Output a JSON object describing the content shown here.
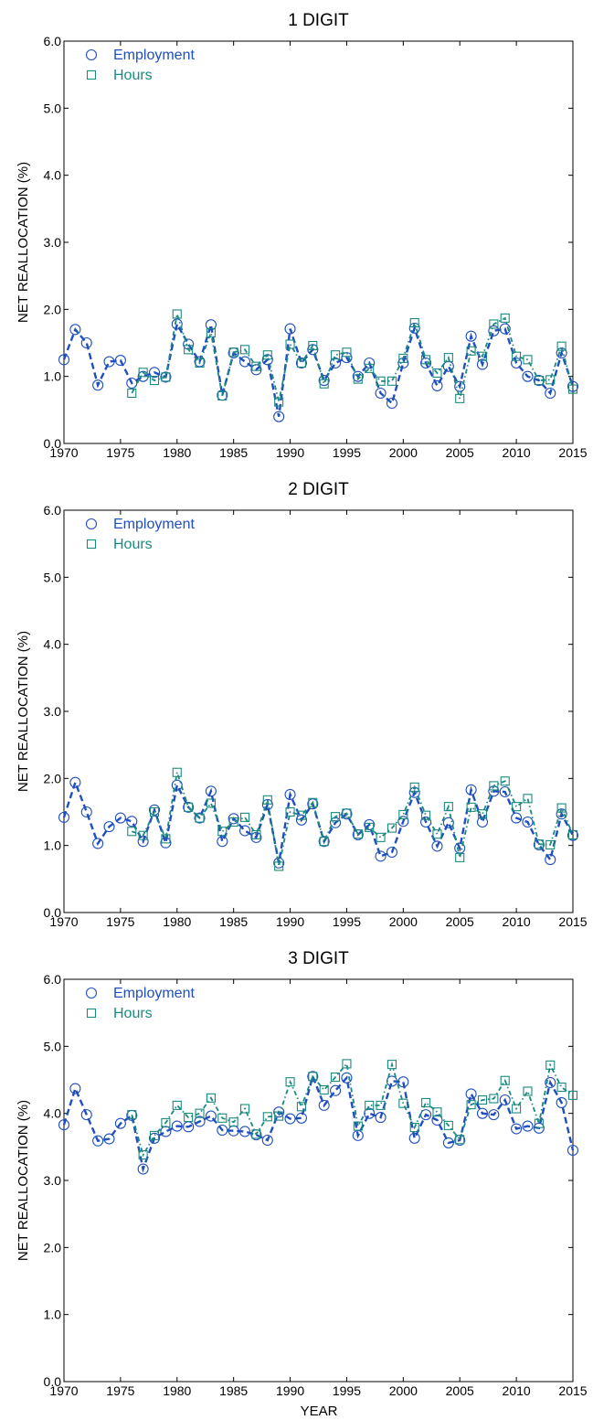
{
  "figure": {
    "xlabel": "YEAR"
  },
  "colors": {
    "employment": "#1f4fbf",
    "hours": "#1a8a7e",
    "axis": "#000000"
  },
  "chart_data": [
    {
      "type": "line",
      "title": "1 DIGIT",
      "ylabel": "NET REALLOCATION (%)",
      "xlim": [
        1970,
        2015
      ],
      "ylim": [
        0,
        6
      ],
      "xticks": [
        "1970",
        "1975",
        "1980",
        "1985",
        "1990",
        "1995",
        "2000",
        "2005",
        "2010",
        "2015"
      ],
      "yticks": [
        "0.0",
        "1.0",
        "2.0",
        "3.0",
        "4.0",
        "5.0",
        "6.0"
      ],
      "legend": "top-left",
      "grid": false,
      "x": [
        1970,
        1971,
        1972,
        1973,
        1974,
        1975,
        1976,
        1977,
        1978,
        1979,
        1980,
        1981,
        1982,
        1983,
        1984,
        1985,
        1986,
        1987,
        1988,
        1989,
        1990,
        1991,
        1992,
        1993,
        1994,
        1995,
        1996,
        1997,
        1998,
        1999,
        2000,
        2001,
        2002,
        2003,
        2004,
        2005,
        2006,
        2007,
        2008,
        2009,
        2010,
        2011,
        2012,
        2013,
        2014,
        2015
      ],
      "series": [
        {
          "name": "Employment",
          "marker": "circle",
          "values": [
            1.25,
            1.7,
            1.5,
            0.87,
            1.22,
            1.24,
            0.9,
            1.0,
            1.06,
            0.99,
            1.78,
            1.48,
            1.22,
            1.77,
            0.72,
            1.35,
            1.22,
            1.1,
            1.25,
            0.4,
            1.71,
            1.2,
            1.4,
            0.94,
            1.2,
            1.28,
            1.0,
            1.2,
            0.75,
            0.6,
            1.2,
            1.72,
            1.2,
            0.86,
            1.15,
            0.85,
            1.6,
            1.18,
            1.68,
            1.71,
            1.2,
            1.0,
            0.94,
            0.75,
            1.35,
            0.85
          ]
        },
        {
          "name": "Hours",
          "marker": "square",
          "values": [
            null,
            null,
            null,
            null,
            null,
            null,
            0.75,
            1.06,
            0.94,
            0.99,
            1.93,
            1.4,
            1.2,
            1.65,
            0.71,
            1.36,
            1.4,
            1.15,
            1.32,
            0.62,
            1.48,
            1.2,
            1.46,
            0.89,
            1.32,
            1.36,
            0.96,
            1.12,
            0.93,
            0.93,
            1.27,
            1.8,
            1.25,
            1.05,
            1.28,
            0.67,
            1.38,
            1.3,
            1.78,
            1.87,
            1.3,
            1.25,
            0.94,
            0.95,
            1.45,
            0.81
          ]
        }
      ]
    },
    {
      "type": "line",
      "title": "2 DIGIT",
      "ylabel": "NET REALLOCATION (%)",
      "xlim": [
        1970,
        2015
      ],
      "ylim": [
        0,
        6
      ],
      "xticks": [
        "1970",
        "1975",
        "1980",
        "1985",
        "1990",
        "1995",
        "2000",
        "2005",
        "2010",
        "2015"
      ],
      "yticks": [
        "0.0",
        "1.0",
        "2.0",
        "3.0",
        "4.0",
        "5.0",
        "6.0"
      ],
      "legend": "top-left",
      "grid": false,
      "x": [
        1970,
        1971,
        1972,
        1973,
        1974,
        1975,
        1976,
        1977,
        1978,
        1979,
        1980,
        1981,
        1982,
        1983,
        1984,
        1985,
        1986,
        1987,
        1988,
        1989,
        1990,
        1991,
        1992,
        1993,
        1994,
        1995,
        1996,
        1997,
        1998,
        1999,
        2000,
        2001,
        2002,
        2003,
        2004,
        2005,
        2006,
        2007,
        2008,
        2009,
        2010,
        2011,
        2012,
        2013,
        2014,
        2015
      ],
      "series": [
        {
          "name": "Employment",
          "marker": "circle",
          "values": [
            1.42,
            1.94,
            1.5,
            1.03,
            1.28,
            1.41,
            1.36,
            1.06,
            1.53,
            1.04,
            1.9,
            1.57,
            1.41,
            1.81,
            1.06,
            1.4,
            1.22,
            1.12,
            1.61,
            0.74,
            1.76,
            1.38,
            1.62,
            1.06,
            1.34,
            1.47,
            1.16,
            1.31,
            0.84,
            0.9,
            1.36,
            1.79,
            1.35,
            0.99,
            1.34,
            0.96,
            1.83,
            1.35,
            1.81,
            1.8,
            1.41,
            1.35,
            1.01,
            0.79,
            1.47,
            1.15
          ]
        },
        {
          "name": "Hours",
          "marker": "square",
          "values": [
            null,
            null,
            null,
            null,
            null,
            null,
            1.21,
            1.15,
            1.5,
            1.1,
            2.09,
            1.57,
            1.41,
            1.63,
            1.21,
            1.35,
            1.42,
            1.16,
            1.68,
            0.69,
            1.5,
            1.45,
            1.64,
            1.06,
            1.43,
            1.48,
            1.17,
            1.27,
            1.12,
            1.26,
            1.46,
            1.87,
            1.45,
            1.17,
            1.58,
            0.82,
            1.57,
            1.47,
            1.89,
            1.96,
            1.58,
            1.7,
            1.02,
            1.01,
            1.56,
            1.16
          ]
        }
      ]
    },
    {
      "type": "line",
      "title": "3 DIGIT",
      "ylabel": "NET REALLOCATION (%)",
      "xlabel": "YEAR",
      "xlim": [
        1970,
        2015
      ],
      "ylim": [
        0,
        6
      ],
      "xticks": [
        "1970",
        "1975",
        "1980",
        "1985",
        "1990",
        "1995",
        "2000",
        "2005",
        "2010",
        "2015"
      ],
      "yticks": [
        "0.0",
        "1.0",
        "2.0",
        "3.0",
        "4.0",
        "5.0",
        "6.0"
      ],
      "legend": "top-left",
      "grid": false,
      "x": [
        1970,
        1971,
        1972,
        1973,
        1974,
        1975,
        1976,
        1977,
        1978,
        1979,
        1980,
        1981,
        1982,
        1983,
        1984,
        1985,
        1986,
        1987,
        1988,
        1989,
        1990,
        1991,
        1992,
        1993,
        1994,
        1995,
        1996,
        1997,
        1998,
        1999,
        2000,
        2001,
        2002,
        2003,
        2004,
        2005,
        2006,
        2007,
        2008,
        2009,
        2010,
        2011,
        2012,
        2013,
        2014,
        2015
      ],
      "series": [
        {
          "name": "Employment",
          "marker": "circle",
          "values": [
            3.83,
            4.37,
            3.98,
            3.59,
            3.62,
            3.85,
            3.97,
            3.17,
            3.63,
            3.73,
            3.81,
            3.8,
            3.88,
            3.96,
            3.75,
            3.74,
            3.73,
            3.68,
            3.6,
            4.02,
            3.92,
            3.93,
            4.55,
            4.12,
            4.34,
            4.53,
            3.67,
            4.0,
            3.94,
            4.48,
            4.47,
            3.63,
            3.98,
            3.9,
            3.56,
            3.6,
            4.29,
            4.0,
            3.98,
            4.2,
            3.77,
            3.81,
            3.78,
            4.46,
            4.16,
            3.45
          ]
        },
        {
          "name": "Hours",
          "marker": "square",
          "values": [
            null,
            null,
            null,
            null,
            null,
            null,
            3.98,
            3.38,
            3.67,
            3.86,
            4.12,
            3.94,
            4.0,
            4.23,
            3.93,
            3.87,
            4.07,
            3.69,
            3.95,
            3.96,
            4.47,
            4.1,
            4.55,
            4.35,
            4.54,
            4.74,
            3.81,
            4.12,
            4.12,
            4.73,
            4.15,
            3.79,
            4.16,
            4.02,
            3.82,
            3.61,
            4.13,
            4.2,
            4.22,
            4.49,
            4.07,
            4.33,
            3.85,
            4.72,
            4.39,
            4.27
          ]
        }
      ]
    }
  ]
}
